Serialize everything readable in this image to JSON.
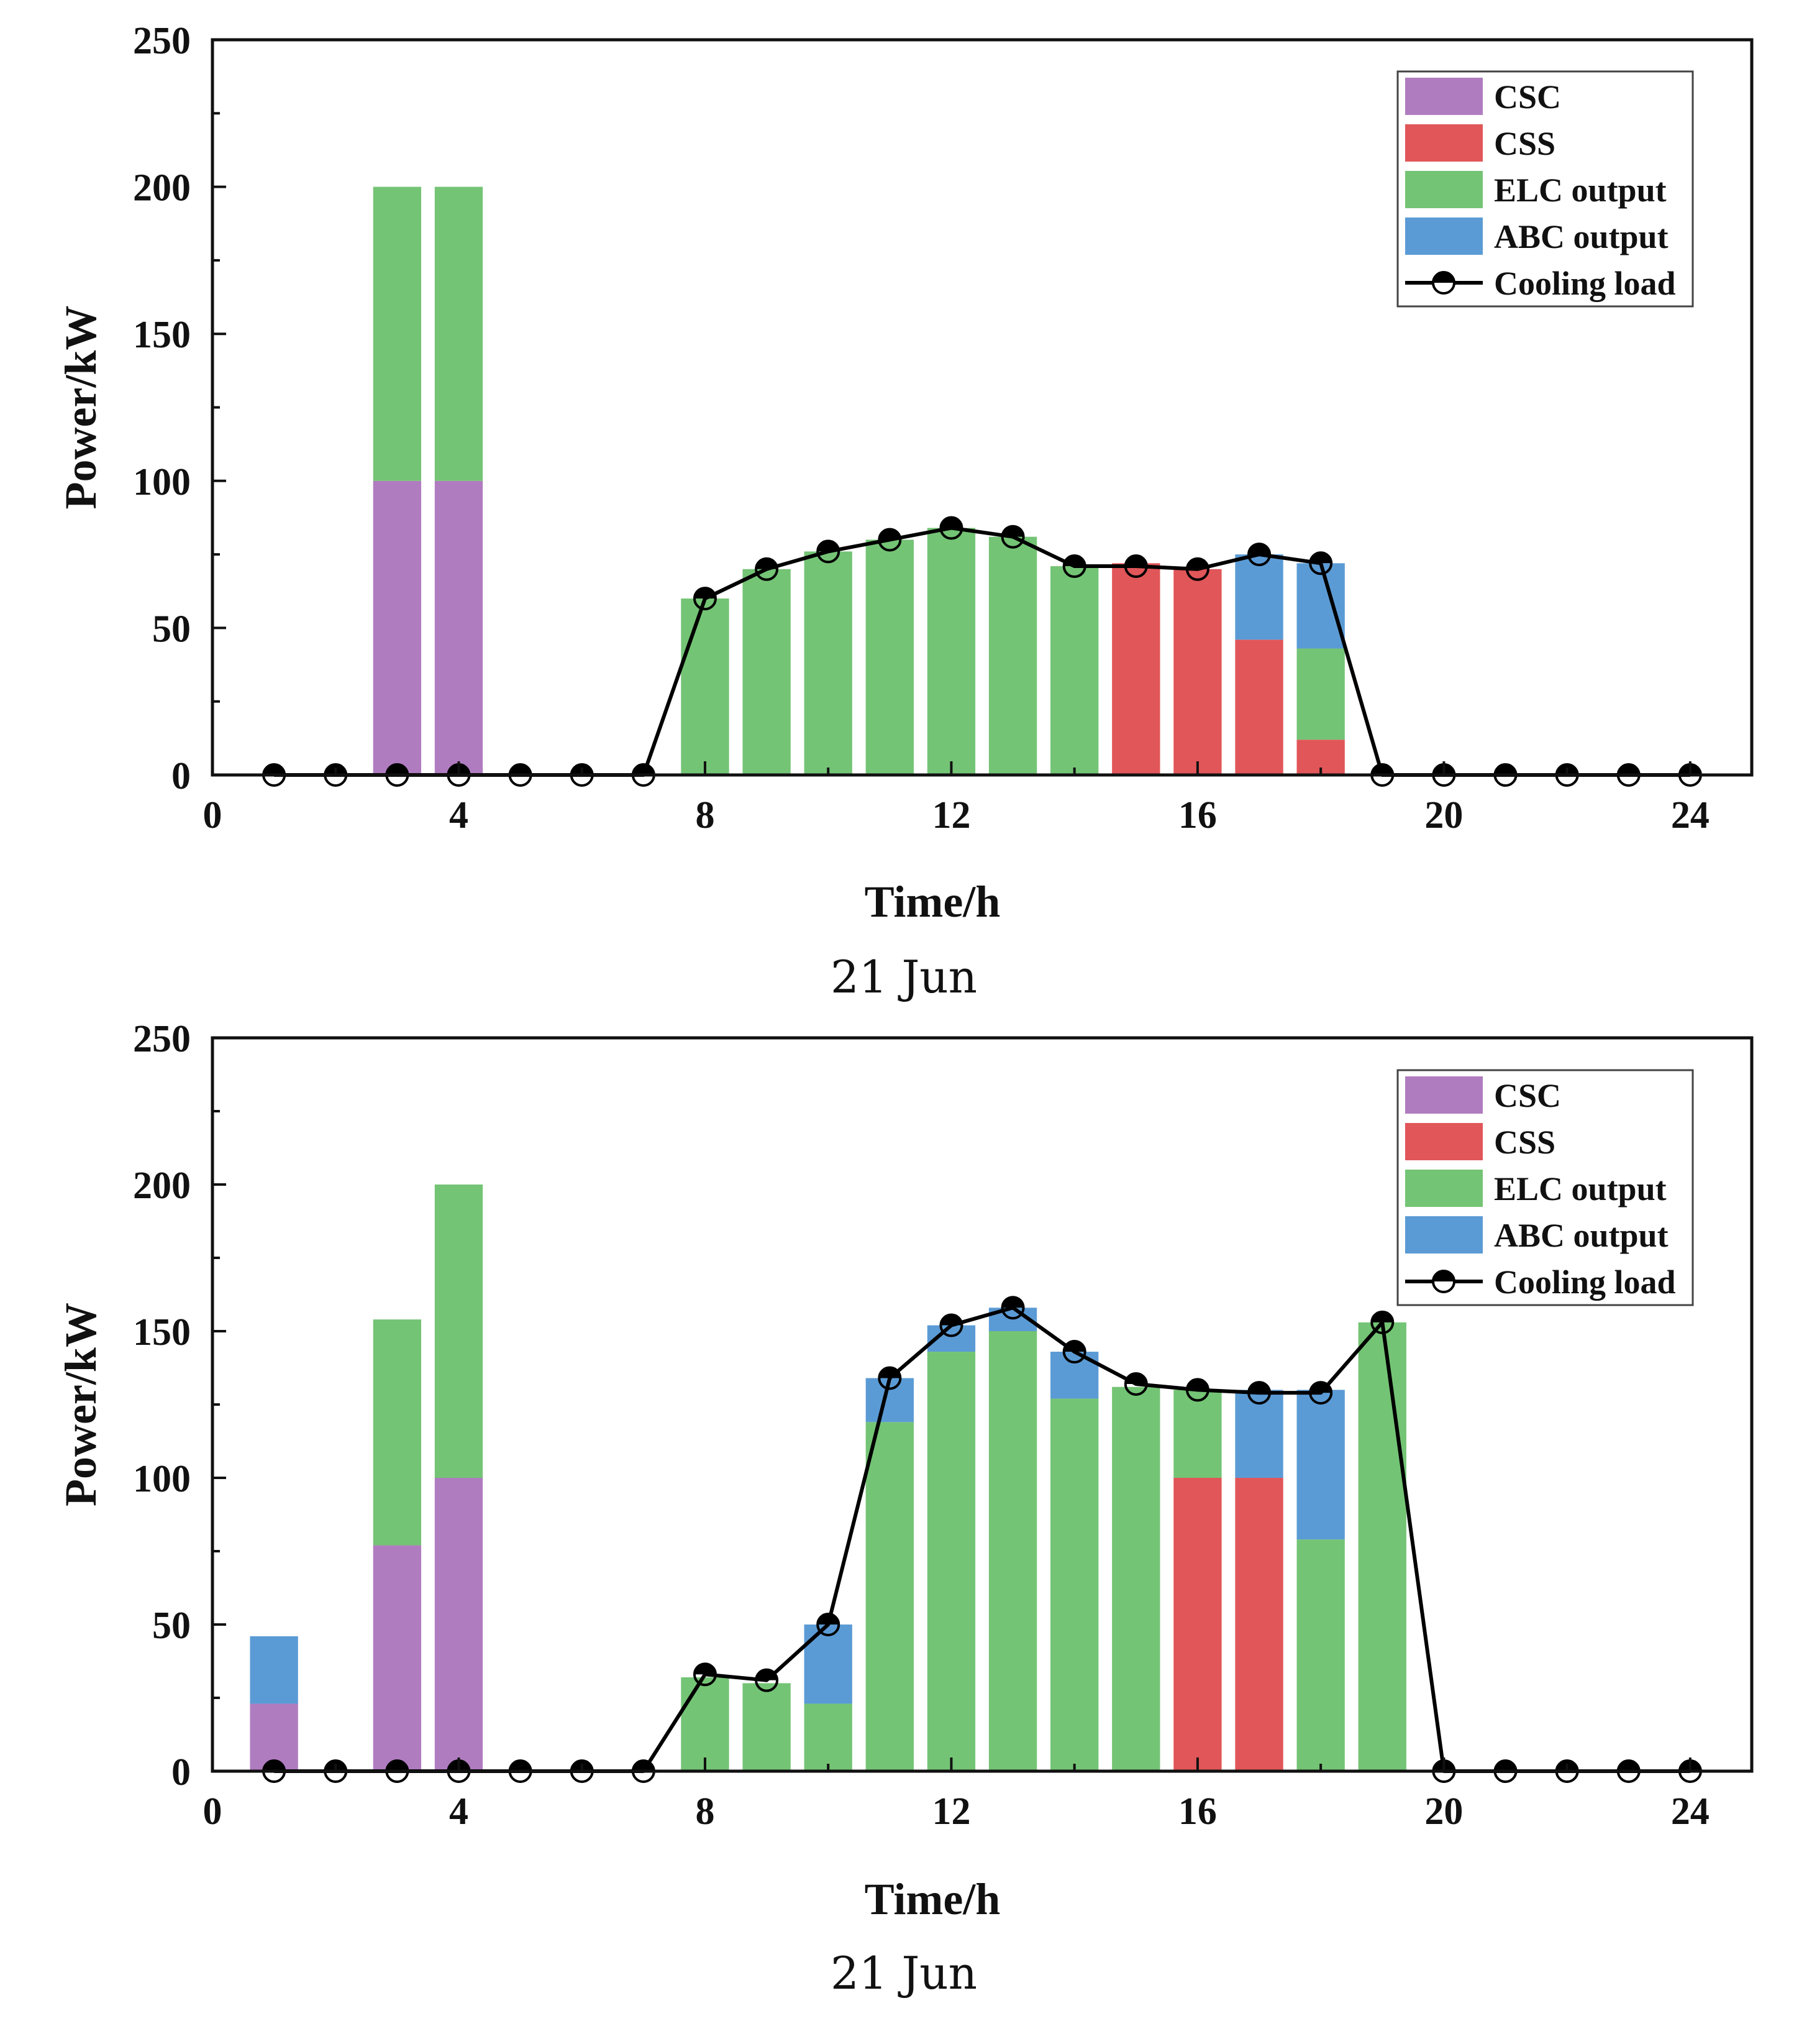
{
  "colors": {
    "CSC": "#b07cc0",
    "CSS": "#e15659",
    "ELC output": "#74c475",
    "ABC output": "#5b9bd5",
    "Cooling load": "#000000"
  },
  "chart_data": [
    {
      "type": "bar",
      "stacked": true,
      "caption": "21 Jun",
      "xlabel": "Time/h",
      "ylabel": "Power/kW",
      "xlim": [
        0,
        25
      ],
      "ylim": [
        0,
        250
      ],
      "xticks": [
        "0",
        "4",
        "8",
        "12",
        "16",
        "20",
        "24"
      ],
      "yticks": [
        "0",
        "50",
        "100",
        "150",
        "200",
        "250"
      ],
      "legend": [
        "CSC",
        "CSS",
        "ELC  output",
        "ABC output",
        "Cooling load"
      ],
      "legend_position": "top-right",
      "x": [
        1,
        2,
        3,
        4,
        5,
        6,
        7,
        8,
        9,
        10,
        11,
        12,
        13,
        14,
        15,
        16,
        17,
        18,
        19,
        20,
        21,
        22,
        23,
        24
      ],
      "series": [
        {
          "name": "CSC",
          "values": [
            0,
            0,
            100,
            100,
            0,
            0,
            0,
            0,
            0,
            0,
            0,
            0,
            0,
            0,
            0,
            0,
            0,
            0,
            0,
            0,
            0,
            0,
            0,
            0
          ]
        },
        {
          "name": "CSS",
          "values": [
            0,
            0,
            0,
            0,
            0,
            0,
            0,
            0,
            0,
            0,
            0,
            0,
            0,
            0,
            72,
            70,
            46,
            12,
            0,
            0,
            0,
            0,
            0,
            0
          ]
        },
        {
          "name": "ELC output",
          "values": [
            0,
            0,
            100,
            100,
            0,
            0,
            0,
            60,
            70,
            76,
            80,
            84,
            81,
            71,
            0,
            0,
            0,
            31,
            0,
            0,
            0,
            0,
            0,
            0
          ]
        },
        {
          "name": "ABC output",
          "values": [
            0,
            0,
            0,
            0,
            0,
            0,
            0,
            0,
            0,
            0,
            0,
            0,
            0,
            0,
            0,
            0,
            29,
            29,
            0,
            0,
            0,
            0,
            0,
            0
          ]
        }
      ],
      "line": {
        "name": "Cooling load",
        "values": [
          0,
          0,
          0,
          0,
          0,
          0,
          0,
          60,
          70,
          76,
          80,
          84,
          81,
          71,
          71,
          70,
          75,
          72,
          0,
          0,
          0,
          0,
          0,
          0
        ]
      }
    },
    {
      "type": "bar",
      "stacked": true,
      "caption": "21 Jun",
      "xlabel": "Time/h",
      "ylabel": "Power/kW",
      "xlim": [
        0,
        25
      ],
      "ylim": [
        0,
        250
      ],
      "xticks": [
        "0",
        "4",
        "8",
        "12",
        "16",
        "20",
        "24"
      ],
      "yticks": [
        "0",
        "50",
        "100",
        "150",
        "200",
        "250"
      ],
      "legend": [
        "CSC",
        "CSS",
        "ELC  output",
        "ABC output",
        "Cooling load"
      ],
      "legend_position": "top-right",
      "x": [
        1,
        2,
        3,
        4,
        5,
        6,
        7,
        8,
        9,
        10,
        11,
        12,
        13,
        14,
        15,
        16,
        17,
        18,
        19,
        20,
        21,
        22,
        23,
        24
      ],
      "series": [
        {
          "name": "CSC",
          "values": [
            23,
            0,
            77,
            100,
            0,
            0,
            0,
            0,
            0,
            0,
            0,
            0,
            0,
            0,
            0,
            0,
            0,
            0,
            0,
            0,
            0,
            0,
            0,
            0
          ]
        },
        {
          "name": "CSS",
          "values": [
            0,
            0,
            0,
            0,
            0,
            0,
            0,
            0,
            0,
            0,
            0,
            0,
            0,
            0,
            0,
            100,
            100,
            0,
            0,
            0,
            0,
            0,
            0,
            0
          ]
        },
        {
          "name": "ELC output",
          "values": [
            0,
            0,
            77,
            100,
            0,
            0,
            0,
            32,
            30,
            23,
            119,
            143,
            150,
            127,
            131,
            30,
            0,
            79,
            153,
            0,
            0,
            0,
            0,
            0
          ]
        },
        {
          "name": "ABC output",
          "values": [
            23,
            0,
            0,
            0,
            0,
            0,
            0,
            0,
            0,
            27,
            15,
            9,
            8,
            16,
            0,
            0,
            30,
            51,
            0,
            0,
            0,
            0,
            0,
            0
          ]
        }
      ],
      "line": {
        "name": "Cooling load",
        "values": [
          0,
          0,
          0,
          0,
          0,
          0,
          0,
          33,
          31,
          50,
          134,
          152,
          158,
          143,
          132,
          130,
          129,
          129,
          153,
          0,
          0,
          0,
          0,
          0
        ]
      }
    }
  ]
}
